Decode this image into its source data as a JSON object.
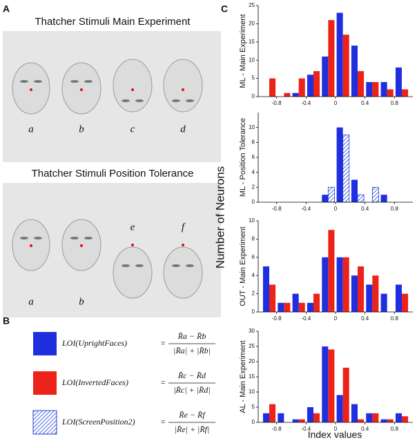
{
  "panel_a": {
    "label": "A",
    "groups": [
      {
        "title": "Thatcher Stimuli Main Experiment",
        "faces": [
          "a",
          "b",
          "c",
          "d"
        ]
      },
      {
        "title": "Thatcher Stimuli Position Tolerance",
        "faces": [
          "a",
          "b",
          "e",
          "f"
        ]
      }
    ]
  },
  "panel_b": {
    "label": "B",
    "formulas": [
      {
        "lhs": "LOI(UprightFaces)",
        "eq": "=",
        "num": "R̄a − R̄b",
        "den": "|R̄a| + |R̄b|",
        "color": "#1f2fe0"
      },
      {
        "lhs": "LOI(InvertedFaces)",
        "eq": "=",
        "num": "R̄c − R̄d",
        "den": "|R̄c| + |R̄d|",
        "color": "#ec2318"
      },
      {
        "lhs": "LOI(ScreenPosition2)",
        "eq": "=",
        "num": "R̄e − R̄f",
        "den": "|R̄e| + |R̄f|",
        "color": "#2040d0",
        "hatch": true
      }
    ]
  },
  "panel_c": {
    "label": "C",
    "ylabel": "Number of Neurons",
    "xlabel": "Index values"
  },
  "chart_data": [
    {
      "type": "bar",
      "ylabel": "ML - Main Experiment",
      "x": [
        -0.9,
        -0.7,
        -0.5,
        -0.3,
        -0.1,
        0.1,
        0.3,
        0.5,
        0.7,
        0.9
      ],
      "series": [
        {
          "color": "#1f2fe0",
          "values": [
            0,
            0,
            1,
            6,
            11,
            23,
            14,
            4,
            4,
            8
          ]
        },
        {
          "color": "#ec2318",
          "values": [
            5,
            1,
            5,
            7,
            21,
            17,
            7,
            4,
            2,
            2
          ]
        }
      ],
      "xlim": [
        -1.05,
        1.05
      ],
      "xticks": [
        -0.8,
        -0.4,
        0,
        0.4,
        0.8
      ],
      "ylim": [
        0,
        25
      ],
      "yticks": [
        0,
        5,
        10,
        15,
        20,
        25
      ]
    },
    {
      "type": "bar",
      "ylabel": "ML - Position Tolerance",
      "x": [
        -0.9,
        -0.7,
        -0.5,
        -0.3,
        -0.1,
        0.1,
        0.3,
        0.5,
        0.7,
        0.9
      ],
      "series": [
        {
          "color": "#1f2fe0",
          "values": [
            0,
            0,
            0,
            0,
            1,
            10,
            3,
            0,
            1,
            0
          ]
        },
        {
          "color": "#2040d0",
          "hatch": true,
          "values": [
            0,
            0,
            0,
            0,
            2,
            9,
            1,
            2,
            0,
            0
          ]
        }
      ],
      "xlim": [
        -1.05,
        1.05
      ],
      "xticks": [
        -0.8,
        -0.4,
        0,
        0.4,
        0.8
      ],
      "ylim": [
        0,
        12
      ],
      "yticks": [
        0,
        2,
        4,
        6,
        8,
        10
      ]
    },
    {
      "type": "bar",
      "ylabel": "OUT - Main Experiment",
      "x": [
        -0.9,
        -0.7,
        -0.5,
        -0.3,
        -0.1,
        0.1,
        0.3,
        0.5,
        0.7,
        0.9
      ],
      "series": [
        {
          "color": "#1f2fe0",
          "values": [
            5,
            1,
            2,
            1,
            6,
            6,
            4,
            3,
            2,
            3
          ]
        },
        {
          "color": "#ec2318",
          "values": [
            3,
            1,
            1,
            2,
            9,
            6,
            5,
            4,
            0,
            2
          ]
        }
      ],
      "xlim": [
        -1.05,
        1.05
      ],
      "xticks": [
        -0.8,
        -0.4,
        0,
        0.4,
        0.8
      ],
      "ylim": [
        0,
        10
      ],
      "yticks": [
        0,
        2,
        4,
        6,
        8,
        10
      ]
    },
    {
      "type": "bar",
      "ylabel": "AL - Main Experiment",
      "x": [
        -0.9,
        -0.7,
        -0.5,
        -0.3,
        -0.1,
        0.1,
        0.3,
        0.5,
        0.7,
        0.9
      ],
      "series": [
        {
          "color": "#1f2fe0",
          "values": [
            3,
            3,
            1,
            5,
            25,
            9,
            6,
            3,
            1,
            3
          ]
        },
        {
          "color": "#ec2318",
          "values": [
            6,
            0,
            1,
            3,
            24,
            18,
            1,
            3,
            1,
            2
          ]
        }
      ],
      "xlim": [
        -1.05,
        1.05
      ],
      "xticks": [
        -0.8,
        -0.4,
        0,
        0.4,
        0.8
      ],
      "ylim": [
        0,
        30
      ],
      "yticks": [
        0,
        5,
        10,
        15,
        20,
        25,
        30
      ]
    }
  ]
}
